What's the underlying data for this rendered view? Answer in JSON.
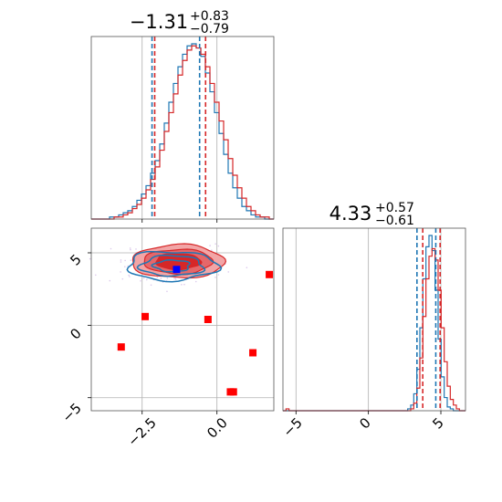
{
  "chart_data": {
    "type": "corner",
    "colors": {
      "blue": "#1f77b4",
      "red": "#d62728",
      "marker_red": "#ff0000",
      "marker_blue": "#0000ff"
    },
    "titles": {
      "p1": {
        "median": "−1.31",
        "plus": "+0.83",
        "minus": "−0.79"
      },
      "p2": {
        "median": "4.33",
        "plus": "+0.57",
        "minus": "−0.61"
      }
    },
    "ticks": {
      "p1": [
        "−2.5",
        "0.0"
      ],
      "p2": [
        "−5",
        "0",
        "5"
      ],
      "p2_y": [
        "5",
        "0",
        "−5"
      ]
    },
    "ranges": {
      "p1": [
        -4.2,
        1.9
      ],
      "p2": [
        -5.9,
        6.7
      ]
    },
    "quantile_lines": {
      "p1": {
        "blue": [
          -2.17,
          -0.58
        ],
        "red": [
          -2.08,
          -0.38
        ]
      },
      "p2": {
        "blue": [
          3.35,
          4.65
        ],
        "red": [
          3.75,
          4.95
        ]
      }
    },
    "hist_p1": {
      "blue": [
        0,
        0,
        0,
        0,
        1,
        1,
        2,
        3,
        4,
        6,
        9,
        12,
        16,
        22,
        28,
        36,
        46,
        56,
        65,
        73,
        79,
        83,
        84,
        82,
        78,
        70,
        61,
        51,
        41,
        31,
        22,
        15,
        10,
        6,
        4,
        2,
        1,
        1,
        0,
        0
      ],
      "red": [
        0,
        0,
        0,
        0,
        0,
        1,
        1,
        2,
        3,
        5,
        7,
        10,
        14,
        19,
        25,
        33,
        42,
        51,
        60,
        69,
        76,
        81,
        83,
        82,
        79,
        73,
        65,
        56,
        47,
        38,
        29,
        21,
        15,
        10,
        6,
        4,
        2,
        1,
        1,
        0
      ]
    },
    "hist_p2": {
      "blue": [
        0,
        0,
        0,
        0,
        0,
        0,
        0,
        0,
        0,
        0,
        0,
        0,
        0,
        0,
        0,
        0,
        0,
        0,
        0,
        0,
        0,
        0,
        0,
        0,
        0,
        0,
        0,
        0,
        0,
        0,
        0,
        0,
        0,
        0,
        0,
        0,
        0,
        0,
        0,
        0,
        0,
        1,
        3,
        9,
        22,
        44,
        70,
        87,
        93,
        85,
        64,
        38,
        18,
        7,
        2,
        1,
        0,
        0,
        0,
        0
      ],
      "red": [
        0,
        1,
        0,
        0,
        0,
        0,
        0,
        0,
        0,
        0,
        0,
        0,
        0,
        0,
        0,
        0,
        0,
        0,
        0,
        0,
        0,
        0,
        0,
        0,
        0,
        0,
        0,
        0,
        0,
        0,
        0,
        0,
        0,
        0,
        0,
        0,
        0,
        0,
        0,
        0,
        0,
        0,
        1,
        4,
        12,
        28,
        50,
        70,
        82,
        86,
        80,
        64,
        44,
        26,
        13,
        6,
        3,
        1,
        0,
        0
      ]
    },
    "contours": {
      "red": [
        {
          "cx": -1.3,
          "cy": 4.4,
          "rx": 1.55,
          "ry": 1.15,
          "level": "outer"
        },
        {
          "cx": -1.3,
          "cy": 4.4,
          "rx": 1.15,
          "ry": 0.85,
          "level": "mid"
        },
        {
          "cx": -1.3,
          "cy": 4.4,
          "rx": 0.75,
          "ry": 0.55,
          "level": "inner"
        }
      ],
      "blue": [
        {
          "cx": -1.5,
          "cy": 4.1,
          "rx": 1.5,
          "ry": 1.0
        },
        {
          "cx": -1.5,
          "cy": 4.1,
          "rx": 1.05,
          "ry": 0.7
        },
        {
          "cx": -1.5,
          "cy": 4.1,
          "rx": 0.6,
          "ry": 0.4
        }
      ]
    },
    "red_markers": [
      {
        "x": 1.75,
        "y": 3.5
      },
      {
        "x": -2.4,
        "y": 0.6
      },
      {
        "x": -0.3,
        "y": 0.4
      },
      {
        "x": -3.2,
        "y": -1.5
      },
      {
        "x": 1.2,
        "y": -1.9
      },
      {
        "x": 0.45,
        "y": -4.6
      },
      {
        "x": 0.55,
        "y": -4.6
      }
    ],
    "blue_marker": {
      "x": -1.35,
      "y": 3.85
    }
  }
}
